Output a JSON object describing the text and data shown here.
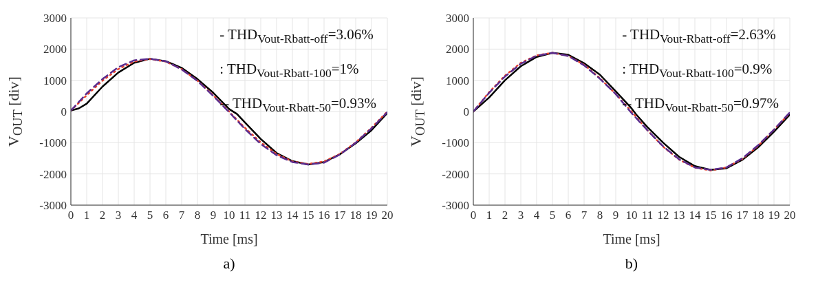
{
  "chart_data": [
    {
      "type": "line",
      "title": "a)",
      "xlabel": "Time [ms]",
      "ylabel": "V$_{OUT}$ [div]",
      "xlim": [
        0,
        20
      ],
      "xticks": [
        0,
        1,
        2,
        3,
        4,
        5,
        6,
        7,
        8,
        9,
        10,
        11,
        12,
        13,
        14,
        15,
        16,
        17,
        18,
        19,
        20
      ],
      "ylim": [
        -3000,
        3000
      ],
      "yticks": [
        -3000,
        -2000,
        -1000,
        0,
        1000,
        2000,
        3000
      ],
      "grid": true,
      "legend": false,
      "annotations": [
        "- THD$_{Vout-Rbatt-off}$=3.06%",
        ": THD$_{Vout-Rbatt-100}$=1%",
        "-- THD$_{Vout-Rbatt-50}$=0.93%"
      ],
      "series": [
        {
          "color": "#000000",
          "line_style": "solid",
          "x": [
            0,
            0.5,
            1,
            2,
            3,
            4,
            5,
            6,
            7,
            8,
            9,
            10,
            10.5,
            11,
            12,
            13,
            14,
            15,
            16,
            17,
            18,
            19,
            20
          ],
          "values": [
            30,
            100,
            250,
            800,
            1250,
            1560,
            1690,
            1610,
            1400,
            1040,
            600,
            80,
            -80,
            -350,
            -880,
            -1330,
            -1590,
            -1700,
            -1620,
            -1370,
            -1020,
            -600,
            -50
          ]
        },
        {
          "color": "#e8412c",
          "line_style": "dotted",
          "x": [
            0,
            1,
            2,
            3,
            4,
            5,
            6,
            7,
            8,
            9,
            10,
            11,
            12,
            13,
            14,
            15,
            16,
            17,
            18,
            19,
            20
          ],
          "values": [
            30,
            520,
            990,
            1360,
            1600,
            1680,
            1600,
            1360,
            990,
            520,
            0,
            -520,
            -990,
            -1360,
            -1600,
            -1680,
            -1600,
            -1360,
            -990,
            -520,
            0
          ]
        },
        {
          "color": "#5b2d8e",
          "line_style": "dashed",
          "x": [
            0,
            1,
            2,
            3,
            4,
            5,
            6,
            7,
            8,
            9,
            10,
            11,
            12,
            13,
            14,
            15,
            16,
            17,
            18,
            19,
            20
          ],
          "values": [
            30,
            580,
            1040,
            1420,
            1640,
            1690,
            1610,
            1350,
            980,
            500,
            -20,
            -560,
            -1040,
            -1400,
            -1620,
            -1700,
            -1640,
            -1380,
            -1000,
            -540,
            -20
          ]
        }
      ]
    },
    {
      "type": "line",
      "title": "b)",
      "xlabel": "Time [ms]",
      "ylabel": "V$_{OUT}$ [div]",
      "xlim": [
        0,
        20
      ],
      "xticks": [
        0,
        1,
        2,
        3,
        4,
        5,
        6,
        7,
        8,
        9,
        10,
        11,
        12,
        13,
        14,
        15,
        16,
        17,
        18,
        19,
        20
      ],
      "ylim": [
        -3000,
        3000
      ],
      "yticks": [
        -3000,
        -2000,
        -1000,
        0,
        1000,
        2000,
        3000
      ],
      "grid": true,
      "legend": false,
      "annotations": [
        "- THD$_{Vout-Rbatt-off}$=2.63%",
        ": THD$_{Vout-Rbatt-100}$=0.9%",
        "-- THD$_{Vout-Rbatt-50}$=0.97%"
      ],
      "series": [
        {
          "color": "#000000",
          "line_style": "solid",
          "x": [
            0,
            1,
            2,
            3,
            4,
            5,
            6,
            7,
            8,
            9,
            10,
            10.3,
            11,
            12,
            13,
            14,
            15,
            16,
            17,
            18,
            19,
            20
          ],
          "values": [
            0,
            450,
            1000,
            1450,
            1750,
            1880,
            1820,
            1550,
            1180,
            650,
            100,
            -100,
            -500,
            -1000,
            -1450,
            -1750,
            -1870,
            -1820,
            -1550,
            -1150,
            -650,
            -100
          ]
        },
        {
          "color": "#e8412c",
          "line_style": "dotted",
          "x": [
            0,
            1,
            2,
            3,
            4,
            5,
            6,
            7,
            8,
            9,
            10,
            11,
            12,
            13,
            14,
            15,
            16,
            17,
            18,
            19,
            20
          ],
          "values": [
            0,
            620,
            1150,
            1560,
            1800,
            1880,
            1780,
            1500,
            1070,
            560,
            0,
            -600,
            -1130,
            -1540,
            -1800,
            -1890,
            -1790,
            -1520,
            -1100,
            -580,
            -50
          ]
        },
        {
          "color": "#5b2d8e",
          "line_style": "dashed",
          "x": [
            0,
            1,
            2,
            3,
            4,
            5,
            6,
            7,
            8,
            9,
            10,
            11,
            12,
            13,
            14,
            15,
            16,
            17,
            18,
            19,
            20
          ],
          "values": [
            0,
            600,
            1120,
            1530,
            1790,
            1880,
            1780,
            1480,
            1050,
            560,
            -50,
            -600,
            -1120,
            -1530,
            -1790,
            -1870,
            -1790,
            -1500,
            -1080,
            -580,
            -30
          ]
        }
      ]
    }
  ]
}
